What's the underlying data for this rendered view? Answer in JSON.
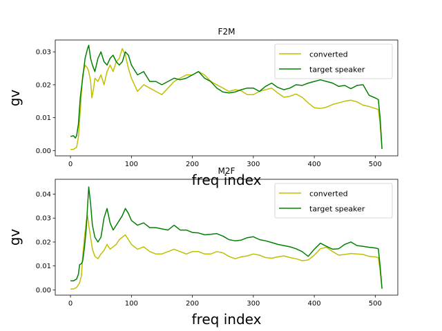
{
  "chart_data": [
    {
      "type": "line",
      "title": "F2M",
      "xlabel": "freq index",
      "ylabel": "gv",
      "xlim": [
        -25,
        537
      ],
      "ylim": [
        -0.0016,
        0.0336
      ],
      "xticks": [
        0,
        100,
        200,
        300,
        400,
        500
      ],
      "xtick_labels": [
        "0",
        "100",
        "200",
        "300",
        "400",
        "500"
      ],
      "yticks": [
        0.0,
        0.01,
        0.02,
        0.03
      ],
      "ytick_labels": [
        "0.00",
        "0.01",
        "0.02",
        "0.03"
      ],
      "legend": "top-right",
      "series": [
        {
          "name": "converted",
          "color": "#bfbf00",
          "x": [
            0,
            5,
            10,
            13,
            16,
            20,
            24,
            28,
            30,
            33,
            35,
            38,
            40,
            45,
            50,
            55,
            60,
            65,
            70,
            75,
            80,
            85,
            90,
            95,
            100,
            110,
            120,
            130,
            140,
            150,
            160,
            170,
            180,
            190,
            200,
            210,
            220,
            230,
            240,
            250,
            260,
            270,
            280,
            290,
            300,
            310,
            320,
            330,
            340,
            350,
            360,
            370,
            380,
            390,
            400,
            410,
            420,
            430,
            440,
            450,
            460,
            470,
            480,
            490,
            500,
            505,
            508,
            511
          ],
          "y": [
            0.0003,
            0.0004,
            0.001,
            0.004,
            0.012,
            0.023,
            0.026,
            0.025,
            0.024,
            0.021,
            0.016,
            0.019,
            0.022,
            0.021,
            0.023,
            0.02,
            0.024,
            0.026,
            0.024,
            0.027,
            0.028,
            0.031,
            0.029,
            0.025,
            0.022,
            0.018,
            0.02,
            0.019,
            0.018,
            0.017,
            0.019,
            0.021,
            0.022,
            0.023,
            0.023,
            0.024,
            0.023,
            0.021,
            0.02,
            0.019,
            0.018,
            0.0185,
            0.0182,
            0.017,
            0.017,
            0.018,
            0.0185,
            0.019,
            0.0175,
            0.0162,
            0.0165,
            0.0172,
            0.0162,
            0.0145,
            0.013,
            0.0128,
            0.0132,
            0.014,
            0.0145,
            0.015,
            0.0153,
            0.0148,
            0.0138,
            0.0134,
            0.0128,
            0.0125,
            0.008,
            0.0005
          ]
        },
        {
          "name": "target speaker",
          "color": "#008000",
          "x": [
            0,
            5,
            8,
            10,
            13,
            16,
            20,
            24,
            28,
            30,
            33,
            36,
            40,
            45,
            50,
            55,
            60,
            65,
            70,
            75,
            80,
            85,
            90,
            95,
            100,
            110,
            120,
            130,
            140,
            150,
            160,
            170,
            180,
            190,
            200,
            210,
            220,
            230,
            240,
            250,
            260,
            270,
            280,
            290,
            300,
            310,
            320,
            330,
            340,
            350,
            360,
            370,
            380,
            390,
            400,
            410,
            420,
            430,
            440,
            450,
            460,
            470,
            480,
            490,
            500,
            505,
            508,
            511
          ],
          "y": [
            0.0043,
            0.0045,
            0.0038,
            0.0045,
            0.008,
            0.016,
            0.022,
            0.028,
            0.031,
            0.032,
            0.028,
            0.026,
            0.024,
            0.028,
            0.03,
            0.027,
            0.026,
            0.028,
            0.029,
            0.027,
            0.026,
            0.027,
            0.03,
            0.029,
            0.026,
            0.023,
            0.024,
            0.021,
            0.021,
            0.02,
            0.021,
            0.022,
            0.0215,
            0.022,
            0.023,
            0.024,
            0.022,
            0.021,
            0.019,
            0.0178,
            0.0175,
            0.0178,
            0.0185,
            0.019,
            0.019,
            0.018,
            0.0195,
            0.0205,
            0.0192,
            0.0185,
            0.019,
            0.02,
            0.0198,
            0.0205,
            0.021,
            0.0215,
            0.021,
            0.0205,
            0.0195,
            0.0198,
            0.0188,
            0.0198,
            0.02,
            0.0168,
            0.016,
            0.0155,
            0.01,
            0.0005
          ]
        }
      ]
    },
    {
      "type": "line",
      "title": "M2F",
      "xlabel": "freq index",
      "ylabel": "gv",
      "xlim": [
        -25,
        537
      ],
      "ylim": [
        -0.0022,
        0.0462
      ],
      "xticks": [
        0,
        100,
        200,
        300,
        400,
        500
      ],
      "xtick_labels": [
        "0",
        "100",
        "200",
        "300",
        "400",
        "500"
      ],
      "yticks": [
        0.0,
        0.01,
        0.02,
        0.03,
        0.04
      ],
      "ytick_labels": [
        "0.00",
        "0.01",
        "0.02",
        "0.03",
        "0.04"
      ],
      "legend": "top-right",
      "series": [
        {
          "name": "converted",
          "color": "#bfbf00",
          "x": [
            0,
            5,
            10,
            15,
            18,
            20,
            23,
            26,
            28,
            30,
            33,
            36,
            40,
            45,
            50,
            55,
            60,
            65,
            70,
            75,
            80,
            85,
            90,
            95,
            100,
            110,
            120,
            130,
            140,
            150,
            160,
            170,
            180,
            190,
            200,
            210,
            220,
            230,
            240,
            250,
            260,
            270,
            280,
            290,
            300,
            310,
            320,
            330,
            340,
            350,
            360,
            370,
            380,
            390,
            400,
            410,
            420,
            430,
            440,
            450,
            460,
            470,
            480,
            490,
            500,
            505,
            508,
            511
          ],
          "y": [
            0.0003,
            0.0004,
            0.001,
            0.003,
            0.006,
            0.014,
            0.022,
            0.029,
            0.031,
            0.027,
            0.022,
            0.017,
            0.014,
            0.013,
            0.015,
            0.0165,
            0.019,
            0.017,
            0.018,
            0.019,
            0.021,
            0.022,
            0.023,
            0.021,
            0.019,
            0.017,
            0.018,
            0.016,
            0.015,
            0.015,
            0.016,
            0.017,
            0.016,
            0.015,
            0.016,
            0.016,
            0.015,
            0.015,
            0.016,
            0.0155,
            0.014,
            0.013,
            0.0138,
            0.0142,
            0.015,
            0.0145,
            0.0135,
            0.0132,
            0.0138,
            0.0142,
            0.0135,
            0.013,
            0.0122,
            0.0125,
            0.0145,
            0.0172,
            0.0178,
            0.016,
            0.0145,
            0.0148,
            0.0152,
            0.015,
            0.0148,
            0.014,
            0.0138,
            0.0135,
            0.008,
            0.0005
          ]
        },
        {
          "name": "target speaker",
          "color": "#008000",
          "x": [
            0,
            5,
            10,
            13,
            15,
            18,
            20,
            23,
            26,
            28,
            30,
            33,
            36,
            40,
            45,
            50,
            55,
            60,
            65,
            70,
            75,
            80,
            85,
            90,
            95,
            100,
            110,
            120,
            130,
            140,
            150,
            160,
            170,
            180,
            190,
            200,
            210,
            220,
            230,
            240,
            250,
            260,
            270,
            280,
            290,
            300,
            310,
            320,
            330,
            340,
            350,
            360,
            370,
            380,
            390,
            400,
            410,
            420,
            430,
            440,
            450,
            460,
            470,
            480,
            490,
            500,
            505,
            508,
            511
          ],
          "y": [
            0.0038,
            0.0038,
            0.0045,
            0.0065,
            0.0105,
            0.011,
            0.012,
            0.018,
            0.026,
            0.035,
            0.043,
            0.036,
            0.027,
            0.022,
            0.02,
            0.022,
            0.03,
            0.034,
            0.028,
            0.025,
            0.027,
            0.029,
            0.031,
            0.034,
            0.032,
            0.029,
            0.027,
            0.028,
            0.026,
            0.026,
            0.0255,
            0.025,
            0.027,
            0.025,
            0.025,
            0.024,
            0.0238,
            0.023,
            0.0232,
            0.0235,
            0.0225,
            0.021,
            0.0205,
            0.0208,
            0.0218,
            0.0222,
            0.021,
            0.0205,
            0.0198,
            0.019,
            0.0185,
            0.018,
            0.0172,
            0.016,
            0.014,
            0.017,
            0.0195,
            0.0182,
            0.017,
            0.0172,
            0.019,
            0.02,
            0.0185,
            0.0182,
            0.0178,
            0.0175,
            0.0172,
            0.01,
            0.0005
          ]
        }
      ]
    }
  ]
}
